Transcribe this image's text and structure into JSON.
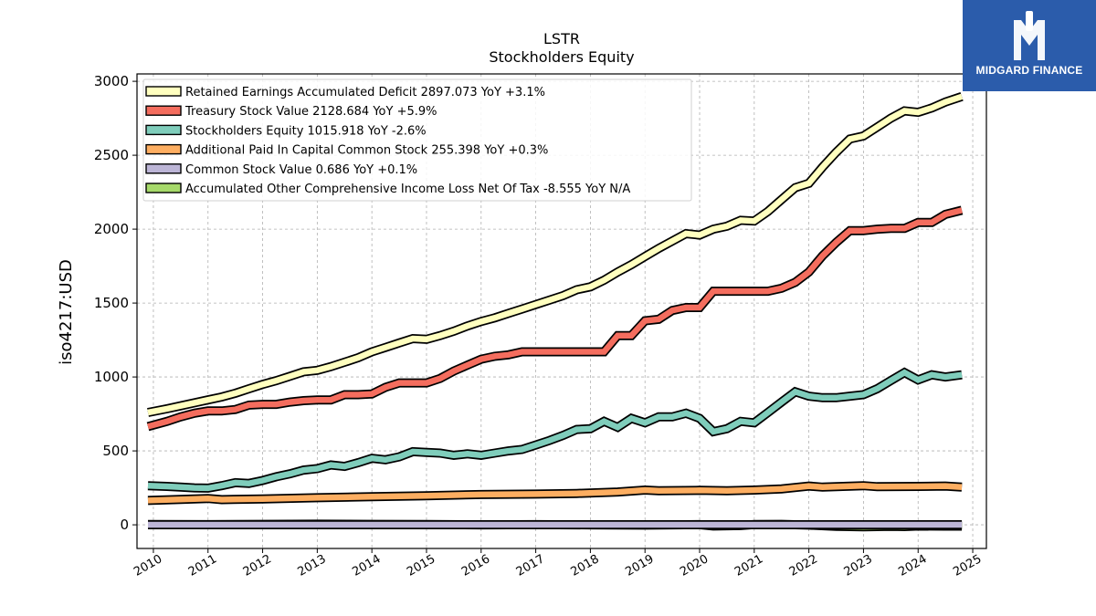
{
  "brand": {
    "name": "MIDGARD FINANCE",
    "bg_color": "#2b5cab"
  },
  "chart_data": {
    "type": "line",
    "title": "LSTR",
    "subtitle": "Stockholders  Equity",
    "ylabel": "iso4217:USD",
    "xlabel": "",
    "xlim": [
      2009.7,
      2025.25
    ],
    "ylim": [
      -160,
      3050
    ],
    "grid": true,
    "legend_position": "top-left",
    "x_ticks": [
      2010,
      2011,
      2012,
      2013,
      2014,
      2015,
      2016,
      2017,
      2018,
      2019,
      2020,
      2021,
      2022,
      2023,
      2024,
      2025
    ],
    "y_ticks": [
      0,
      500,
      1000,
      1500,
      2000,
      2500,
      3000
    ],
    "series": [
      {
        "name": "Retained Earnings Accumulated Deficit",
        "legend": "Retained Earnings Accumulated Deficit  2897.073 YoY +3.1%",
        "color": "#ffffbf",
        "x": [
          2009.9,
          2010.25,
          2010.5,
          2010.75,
          2011.0,
          2011.25,
          2011.5,
          2011.75,
          2012.0,
          2012.25,
          2012.5,
          2012.75,
          2013.0,
          2013.25,
          2013.5,
          2013.75,
          2014.0,
          2014.25,
          2014.5,
          2014.75,
          2015.0,
          2015.25,
          2015.5,
          2015.75,
          2016.0,
          2016.25,
          2016.5,
          2016.75,
          2017.0,
          2017.25,
          2017.5,
          2017.75,
          2018.0,
          2018.25,
          2018.5,
          2018.75,
          2019.0,
          2019.25,
          2019.5,
          2019.75,
          2020.0,
          2020.25,
          2020.5,
          2020.75,
          2021.0,
          2021.25,
          2021.5,
          2021.75,
          2022.0,
          2022.25,
          2022.5,
          2022.75,
          2023.0,
          2023.25,
          2023.5,
          2023.75,
          2024.0,
          2024.25,
          2024.5,
          2024.8
        ],
        "values": [
          760,
          785,
          805,
          825,
          845,
          865,
          890,
          920,
          950,
          975,
          1005,
          1035,
          1045,
          1070,
          1100,
          1130,
          1170,
          1200,
          1230,
          1260,
          1255,
          1280,
          1310,
          1345,
          1375,
          1400,
          1430,
          1460,
          1490,
          1520,
          1550,
          1590,
          1610,
          1655,
          1710,
          1760,
          1815,
          1870,
          1920,
          1970,
          1960,
          2000,
          2020,
          2060,
          2055,
          2120,
          2200,
          2280,
          2310,
          2420,
          2520,
          2610,
          2630,
          2690,
          2750,
          2800,
          2790,
          2820,
          2860,
          2897
        ]
      },
      {
        "name": "Treasury Stock Value",
        "legend": "Treasury Stock Value  2128.684 YoY +5.9%",
        "color": "#f46d5e",
        "x": [
          2009.9,
          2010.25,
          2010.5,
          2010.75,
          2011.0,
          2011.25,
          2011.5,
          2011.75,
          2012.0,
          2012.25,
          2012.5,
          2012.75,
          2013.0,
          2013.25,
          2013.5,
          2013.75,
          2014.0,
          2014.25,
          2014.5,
          2014.75,
          2015.0,
          2015.25,
          2015.5,
          2015.75,
          2016.0,
          2016.25,
          2016.5,
          2016.75,
          2017.0,
          2017.25,
          2017.5,
          2017.75,
          2018.0,
          2018.25,
          2018.5,
          2018.75,
          2019.0,
          2019.25,
          2019.5,
          2019.75,
          2020.0,
          2020.25,
          2020.5,
          2020.75,
          2021.0,
          2021.25,
          2021.5,
          2021.75,
          2022.0,
          2022.25,
          2022.5,
          2022.75,
          2023.0,
          2023.25,
          2023.5,
          2023.75,
          2024.0,
          2024.25,
          2024.5,
          2024.8
        ],
        "values": [
          665,
          700,
          730,
          755,
          770,
          770,
          780,
          810,
          815,
          815,
          830,
          840,
          845,
          845,
          880,
          880,
          885,
          930,
          960,
          960,
          960,
          990,
          1040,
          1080,
          1120,
          1140,
          1150,
          1170,
          1170,
          1170,
          1170,
          1170,
          1170,
          1170,
          1280,
          1280,
          1380,
          1390,
          1450,
          1470,
          1470,
          1580,
          1580,
          1580,
          1580,
          1580,
          1600,
          1640,
          1710,
          1820,
          1910,
          1990,
          1990,
          2000,
          2005,
          2005,
          2045,
          2045,
          2100,
          2128
        ]
      },
      {
        "name": "Stockholders Equity",
        "legend": "Stockholders Equity  1015.918 YoY -2.6%",
        "color": "#7fcdbb",
        "x": [
          2009.9,
          2010.25,
          2010.5,
          2010.75,
          2011.0,
          2011.25,
          2011.5,
          2011.75,
          2012.0,
          2012.25,
          2012.5,
          2012.75,
          2013.0,
          2013.25,
          2013.5,
          2013.75,
          2014.0,
          2014.25,
          2014.5,
          2014.75,
          2015.0,
          2015.25,
          2015.5,
          2015.75,
          2016.0,
          2016.25,
          2016.5,
          2016.75,
          2017.0,
          2017.25,
          2017.5,
          2017.75,
          2018.0,
          2018.25,
          2018.5,
          2018.75,
          2019.0,
          2019.25,
          2019.5,
          2019.75,
          2020.0,
          2020.25,
          2020.5,
          2020.75,
          2021.0,
          2021.25,
          2021.5,
          2021.75,
          2022.0,
          2022.25,
          2022.5,
          2022.75,
          2023.0,
          2023.25,
          2023.5,
          2023.75,
          2024.0,
          2024.25,
          2024.5,
          2024.8
        ],
        "values": [
          265,
          260,
          255,
          250,
          248,
          265,
          285,
          280,
          300,
          325,
          345,
          370,
          380,
          405,
          395,
          420,
          450,
          440,
          460,
          495,
          490,
          485,
          470,
          480,
          470,
          485,
          500,
          510,
          540,
          570,
          605,
          645,
          650,
          700,
          660,
          720,
          690,
          730,
          730,
          755,
          720,
          630,
          650,
          700,
          690,
          760,
          830,
          900,
          870,
          860,
          860,
          870,
          880,
          920,
          975,
          1030,
          980,
          1015,
          1000,
          1015
        ]
      },
      {
        "name": "Additional Paid In Capital Common Stock",
        "legend": "Additional Paid In Capital Common Stock  255.398 YoY +0.3%",
        "color": "#fdae61",
        "x": [
          2009.9,
          2010.5,
          2011.0,
          2011.25,
          2012.0,
          2013.0,
          2014.0,
          2015.0,
          2016.0,
          2017.0,
          2017.75,
          2018.5,
          2019.0,
          2019.25,
          2020.0,
          2020.5,
          2021.0,
          2021.5,
          2022.0,
          2022.25,
          2023.0,
          2023.25,
          2024.0,
          2024.5,
          2024.8
        ],
        "values": [
          165,
          172,
          178,
          170,
          175,
          183,
          190,
          197,
          205,
          208,
          212,
          222,
          235,
          230,
          233,
          230,
          235,
          243,
          262,
          255,
          265,
          258,
          260,
          262,
          255
        ]
      },
      {
        "name": "Common Stock Value",
        "legend": "Common Stock Value  0.686 YoY +0.1%",
        "color": "#bcb5d6",
        "x": [
          2009.9,
          2012.0,
          2015.0,
          2018.0,
          2020.0,
          2021.0,
          2022.0,
          2023.0,
          2024.0,
          2024.8
        ],
        "values": [
          0.7,
          0.7,
          0.7,
          0.7,
          0.7,
          0.7,
          0.7,
          0.7,
          0.7,
          0.686
        ]
      },
      {
        "name": "Accumulated Other Comprehensive Income Loss Net Of Tax",
        "legend": "Accumulated Other Comprehensive Income Loss Net Of Tax  -8.555 YoY N/A",
        "color": "#a6d96a",
        "x": [
          2009.9,
          2011.0,
          2012.0,
          2013.0,
          2014.0,
          2015.0,
          2016.0,
          2017.0,
          2018.0,
          2019.0,
          2019.5,
          2020.0,
          2020.25,
          2020.75,
          2021.0,
          2021.5,
          2022.0,
          2022.5,
          2023.0,
          2023.5,
          2023.75,
          2024.0,
          2024.5,
          2024.8
        ],
        "values": [
          2,
          1,
          3,
          4,
          3,
          2,
          0,
          1,
          0,
          -2,
          0,
          1,
          -8,
          -5,
          2,
          3,
          -2,
          -10,
          -14,
          -10,
          -12,
          -8,
          -9,
          -8.5
        ]
      }
    ]
  }
}
